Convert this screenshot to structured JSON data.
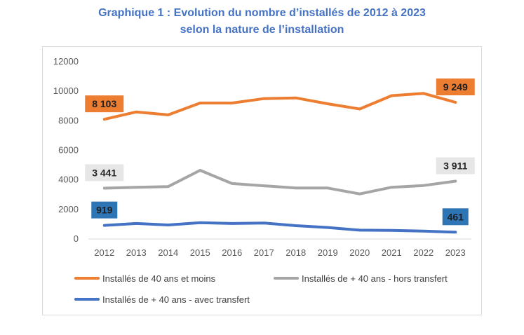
{
  "title_line1": "Graphique 1 : Evolution du nombre d’installés de 2012 à 2023",
  "title_line2": "selon la nature de l’installation",
  "chart_data": {
    "type": "line",
    "x": [
      "2012",
      "2013",
      "2014",
      "2015",
      "2016",
      "2017",
      "2018",
      "2019",
      "2020",
      "2021",
      "2022",
      "2023"
    ],
    "ylim": [
      0,
      12000
    ],
    "yticks": [
      0,
      2000,
      4000,
      6000,
      8000,
      10000,
      12000
    ],
    "grid": false,
    "legend_position": "bottom",
    "series": [
      {
        "name": "Installés de 40 ans et moins",
        "color": "#ed7d31",
        "values": [
          8103,
          8600,
          8400,
          9200,
          9200,
          9500,
          9550,
          9150,
          8800,
          9700,
          9850,
          9249
        ],
        "first_label": "8 103",
        "last_label": "9 249",
        "label_bg": "#ed7d31",
        "label_fg": "#1f1f1f"
      },
      {
        "name": "Installés de + 40 ans - hors transfert",
        "color": "#a5a5a5",
        "values": [
          3441,
          3500,
          3550,
          4650,
          3750,
          3600,
          3450,
          3450,
          3050,
          3500,
          3620,
          3911
        ],
        "first_label": "3 441",
        "last_label": "3 911",
        "label_bg": "#e7e6e6",
        "label_fg": "#262626"
      },
      {
        "name": "Installés de + 40 ans - avec transfert",
        "color": "#4472c4",
        "values": [
          919,
          1050,
          950,
          1100,
          1050,
          1080,
          900,
          780,
          600,
          580,
          530,
          461
        ],
        "first_label": "919",
        "last_label": "461",
        "label_bg": "#2e75b6",
        "label_fg": "#1f1f1f"
      }
    ]
  }
}
